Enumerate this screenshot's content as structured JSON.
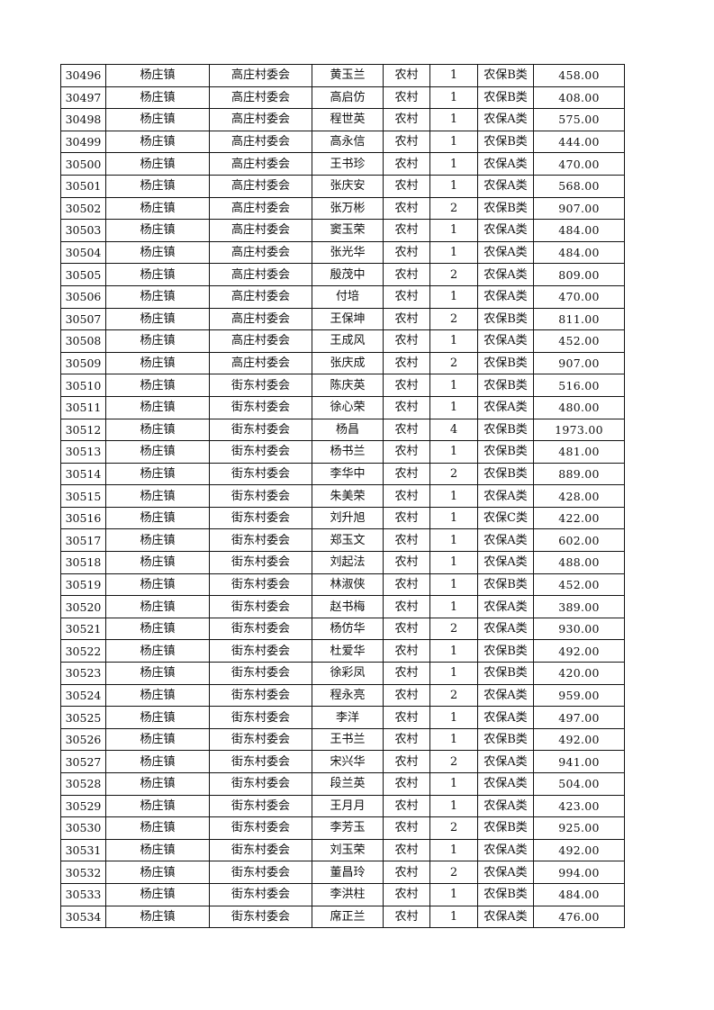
{
  "table": {
    "rows": [
      [
        "30496",
        "杨庄镇",
        "高庄村委会",
        "黄玉兰",
        "农村",
        "1",
        "农保B类",
        "458.00"
      ],
      [
        "30497",
        "杨庄镇",
        "高庄村委会",
        "高启仿",
        "农村",
        "1",
        "农保B类",
        "408.00"
      ],
      [
        "30498",
        "杨庄镇",
        "高庄村委会",
        "程世英",
        "农村",
        "1",
        "农保A类",
        "575.00"
      ],
      [
        "30499",
        "杨庄镇",
        "高庄村委会",
        "高永信",
        "农村",
        "1",
        "农保B类",
        "444.00"
      ],
      [
        "30500",
        "杨庄镇",
        "高庄村委会",
        "王书珍",
        "农村",
        "1",
        "农保A类",
        "470.00"
      ],
      [
        "30501",
        "杨庄镇",
        "高庄村委会",
        "张庆安",
        "农村",
        "1",
        "农保A类",
        "568.00"
      ],
      [
        "30502",
        "杨庄镇",
        "高庄村委会",
        "张万彬",
        "农村",
        "2",
        "农保B类",
        "907.00"
      ],
      [
        "30503",
        "杨庄镇",
        "高庄村委会",
        "窦玉荣",
        "农村",
        "1",
        "农保A类",
        "484.00"
      ],
      [
        "30504",
        "杨庄镇",
        "高庄村委会",
        "张光华",
        "农村",
        "1",
        "农保A类",
        "484.00"
      ],
      [
        "30505",
        "杨庄镇",
        "高庄村委会",
        "殷茂中",
        "农村",
        "2",
        "农保A类",
        "809.00"
      ],
      [
        "30506",
        "杨庄镇",
        "高庄村委会",
        "付培",
        "农村",
        "1",
        "农保A类",
        "470.00"
      ],
      [
        "30507",
        "杨庄镇",
        "高庄村委会",
        "王保坤",
        "农村",
        "2",
        "农保B类",
        "811.00"
      ],
      [
        "30508",
        "杨庄镇",
        "高庄村委会",
        "王成风",
        "农村",
        "1",
        "农保A类",
        "452.00"
      ],
      [
        "30509",
        "杨庄镇",
        "高庄村委会",
        "张庆成",
        "农村",
        "2",
        "农保B类",
        "907.00"
      ],
      [
        "30510",
        "杨庄镇",
        "街东村委会",
        "陈庆英",
        "农村",
        "1",
        "农保B类",
        "516.00"
      ],
      [
        "30511",
        "杨庄镇",
        "街东村委会",
        "徐心荣",
        "农村",
        "1",
        "农保A类",
        "480.00"
      ],
      [
        "30512",
        "杨庄镇",
        "街东村委会",
        "杨昌",
        "农村",
        "4",
        "农保B类",
        "1973.00"
      ],
      [
        "30513",
        "杨庄镇",
        "街东村委会",
        "杨书兰",
        "农村",
        "1",
        "农保B类",
        "481.00"
      ],
      [
        "30514",
        "杨庄镇",
        "街东村委会",
        "李华中",
        "农村",
        "2",
        "农保B类",
        "889.00"
      ],
      [
        "30515",
        "杨庄镇",
        "街东村委会",
        "朱美荣",
        "农村",
        "1",
        "农保A类",
        "428.00"
      ],
      [
        "30516",
        "杨庄镇",
        "街东村委会",
        "刘升旭",
        "农村",
        "1",
        "农保C类",
        "422.00"
      ],
      [
        "30517",
        "杨庄镇",
        "街东村委会",
        "郑玉文",
        "农村",
        "1",
        "农保A类",
        "602.00"
      ],
      [
        "30518",
        "杨庄镇",
        "街东村委会",
        "刘起法",
        "农村",
        "1",
        "农保A类",
        "488.00"
      ],
      [
        "30519",
        "杨庄镇",
        "街东村委会",
        "林淑侠",
        "农村",
        "1",
        "农保B类",
        "452.00"
      ],
      [
        "30520",
        "杨庄镇",
        "街东村委会",
        "赵书梅",
        "农村",
        "1",
        "农保A类",
        "389.00"
      ],
      [
        "30521",
        "杨庄镇",
        "街东村委会",
        "杨仿华",
        "农村",
        "2",
        "农保A类",
        "930.00"
      ],
      [
        "30522",
        "杨庄镇",
        "街东村委会",
        "杜爱华",
        "农村",
        "1",
        "农保B类",
        "492.00"
      ],
      [
        "30523",
        "杨庄镇",
        "街东村委会",
        "徐彩凤",
        "农村",
        "1",
        "农保B类",
        "420.00"
      ],
      [
        "30524",
        "杨庄镇",
        "街东村委会",
        "程永亮",
        "农村",
        "2",
        "农保A类",
        "959.00"
      ],
      [
        "30525",
        "杨庄镇",
        "街东村委会",
        "李洋",
        "农村",
        "1",
        "农保A类",
        "497.00"
      ],
      [
        "30526",
        "杨庄镇",
        "街东村委会",
        "王书兰",
        "农村",
        "1",
        "农保B类",
        "492.00"
      ],
      [
        "30527",
        "杨庄镇",
        "街东村委会",
        "宋兴华",
        "农村",
        "2",
        "农保A类",
        "941.00"
      ],
      [
        "30528",
        "杨庄镇",
        "街东村委会",
        "段兰英",
        "农村",
        "1",
        "农保A类",
        "504.00"
      ],
      [
        "30529",
        "杨庄镇",
        "街东村委会",
        "王月月",
        "农村",
        "1",
        "农保A类",
        "423.00"
      ],
      [
        "30530",
        "杨庄镇",
        "街东村委会",
        "李芳玉",
        "农村",
        "2",
        "农保B类",
        "925.00"
      ],
      [
        "30531",
        "杨庄镇",
        "街东村委会",
        "刘玉荣",
        "农村",
        "1",
        "农保A类",
        "492.00"
      ],
      [
        "30532",
        "杨庄镇",
        "街东村委会",
        "董昌玲",
        "农村",
        "2",
        "农保A类",
        "994.00"
      ],
      [
        "30533",
        "杨庄镇",
        "街东村委会",
        "李洪柱",
        "农村",
        "1",
        "农保B类",
        "484.00"
      ],
      [
        "30534",
        "杨庄镇",
        "街东村委会",
        "席正兰",
        "农村",
        "1",
        "农保A类",
        "476.00"
      ]
    ]
  }
}
